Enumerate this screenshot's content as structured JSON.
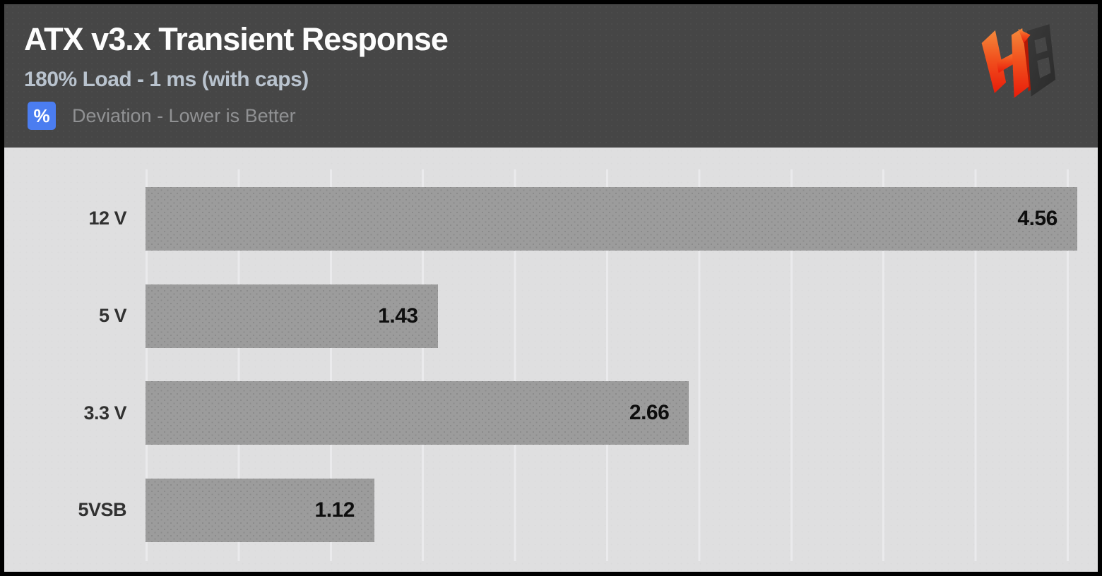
{
  "header": {
    "title": "ATX v3.x Transient Response",
    "subtitle": "180% Load - 1 ms (with caps)",
    "legend_badge": "%",
    "legend_text": "Deviation - Lower is Better"
  },
  "icons": {
    "logo": "hardware-busters-hb-logo"
  },
  "colors": {
    "header_bg": "#464646",
    "chart_bg": "#dfdfe0",
    "bar_fill": "#9c9c9c",
    "badge_blue": "#4b7df0",
    "title_text": "#fdfdfd",
    "subtitle_text": "#b9c3ce",
    "legend_text": "#909193",
    "category_text": "#313131",
    "value_text": "#0e0e0e",
    "gridline": "#eaeaec",
    "logo_orange_top": "#f48a3c",
    "logo_red_bottom": "#e91c0a",
    "logo_dark": "#343434"
  },
  "chart_data": {
    "type": "bar",
    "orientation": "horizontal",
    "title": "ATX v3.x Transient Response",
    "subtitle": "180% Load - 1 ms (with caps)",
    "unit": "%",
    "note": "Deviation - Lower is Better",
    "categories": [
      "12 V",
      "5 V",
      "3.3 V",
      "5VSB"
    ],
    "values": [
      4.56,
      1.43,
      2.66,
      1.12
    ],
    "value_labels": [
      "4.56",
      "1.43",
      "2.66",
      "1.12"
    ],
    "xlim": [
      0,
      4.661
    ],
    "grid": "vertical gridlines, unlabeled axis",
    "value_label_position": "inside bar, right end",
    "legend_position": "top-left under subtitle"
  }
}
